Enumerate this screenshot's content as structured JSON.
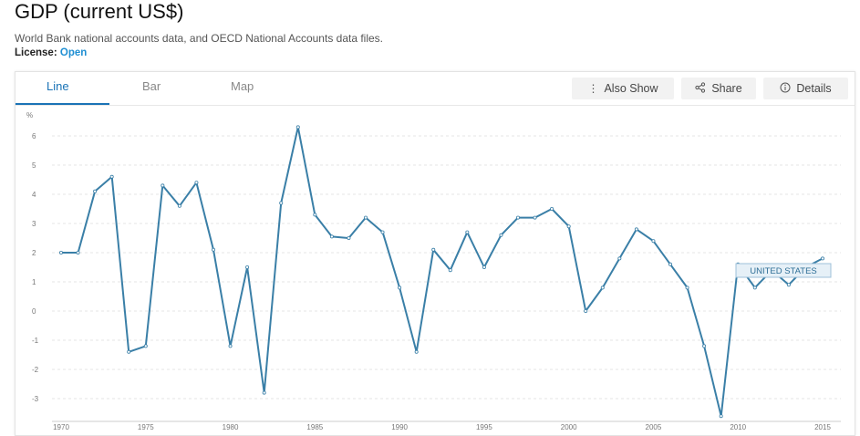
{
  "header": {
    "title": "GDP (current US$)",
    "source": "World Bank national accounts data, and OECD National Accounts data files.",
    "license_label": "License:",
    "license_value": "Open"
  },
  "tabs": [
    {
      "label": "Line",
      "active": true
    },
    {
      "label": "Bar",
      "active": false
    },
    {
      "label": "Map",
      "active": false
    }
  ],
  "toolbar": {
    "also_show": "Also Show",
    "share": "Share",
    "details": "Details"
  },
  "colors": {
    "line": "#3a7fa7",
    "accent": "#1a73b6",
    "tooltip_bg": "#e6f0f7",
    "tooltip_border": "#9fc0d8"
  },
  "chart_data": {
    "type": "line",
    "title": "",
    "ylabel": "%",
    "xlabel": "",
    "ylim": [
      -3.5,
      6.5
    ],
    "yticks": [
      6,
      5,
      4,
      3,
      2,
      1,
      0,
      -1,
      -2,
      -3
    ],
    "xticks": [
      1970,
      1975,
      1980,
      1985,
      1990,
      1995,
      2000,
      2005,
      2010,
      2015
    ],
    "series": [
      {
        "name": "UNITED STATES",
        "x": [
          1970,
          1971,
          1972,
          1973,
          1974,
          1975,
          1976,
          1977,
          1978,
          1979,
          1980,
          1981,
          1982,
          1983,
          1984,
          1985,
          1986,
          1987,
          1988,
          1989,
          1990,
          1991,
          1992,
          1993,
          1994,
          1995,
          1996,
          1997,
          1998,
          1999,
          2000,
          2001,
          2002,
          2003,
          2004,
          2005,
          2006,
          2007,
          2008,
          2009,
          2010,
          2011,
          2012,
          2013,
          2014,
          2015
        ],
        "values": [
          2.0,
          2.0,
          4.1,
          4.6,
          -1.4,
          -1.2,
          4.3,
          3.6,
          4.4,
          2.1,
          -1.2,
          1.5,
          -2.8,
          3.7,
          6.3,
          3.3,
          2.55,
          2.5,
          3.2,
          2.7,
          0.8,
          -1.4,
          2.1,
          1.4,
          2.7,
          1.5,
          2.6,
          3.2,
          3.2,
          3.5,
          2.9,
          0.0,
          0.8,
          1.8,
          2.8,
          2.4,
          1.6,
          0.8,
          -1.2,
          -3.6,
          1.6,
          0.8,
          1.4,
          0.9,
          1.5,
          1.8
        ]
      }
    ],
    "tooltip": {
      "label": "UNITED STATES"
    }
  }
}
